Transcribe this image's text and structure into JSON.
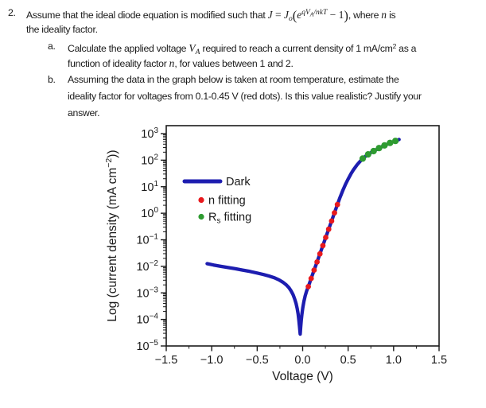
{
  "question": {
    "lines": [
      {
        "marker": "2.",
        "indent": "q",
        "segments": [
          {
            "t": "Assume that the ideal diode equation is modified such that ",
            "s": "p"
          },
          {
            "t": "J",
            "s": "i"
          },
          {
            "t": " = ",
            "s": "r"
          },
          {
            "t": "J",
            "s": "i"
          },
          {
            "t": "o",
            "s": "isub"
          },
          {
            "t": "(",
            "s": "big"
          },
          {
            "t": "e",
            "s": "i"
          },
          {
            "t": "qV",
            "s": "isup"
          },
          {
            "t": "A",
            "s": "isupsub"
          },
          {
            "t": "/nkT",
            "s": "isup"
          },
          {
            "t": " − 1",
            "s": "r"
          },
          {
            "t": ")",
            "s": "big"
          },
          {
            "t": ", where ",
            "s": "p"
          },
          {
            "t": "n",
            "s": "i"
          },
          {
            "t": " is",
            "s": "p"
          }
        ]
      },
      {
        "indent": "q",
        "segments": [
          {
            "t": "the ideality factor.",
            "s": "p"
          }
        ]
      },
      {
        "marker": "a.",
        "indent": "sub",
        "segments": [
          {
            "t": "Calculate the applied voltage ",
            "s": "p"
          },
          {
            "t": "V",
            "s": "i"
          },
          {
            "t": "A",
            "s": "isub"
          },
          {
            "t": " required to reach a current density of 1 mA/cm",
            "s": "p"
          },
          {
            "t": "2",
            "s": "sup"
          },
          {
            "t": " as a",
            "s": "p"
          }
        ]
      },
      {
        "indent": "sub",
        "segments": [
          {
            "t": "function of ideality factor ",
            "s": "p"
          },
          {
            "t": "n",
            "s": "i"
          },
          {
            "t": ", for values between 1 and 2.",
            "s": "p"
          }
        ]
      },
      {
        "marker": "b.",
        "indent": "sub",
        "segments": [
          {
            "t": "Assuming the data in the graph below is taken at room temperature, estimate the",
            "s": "p"
          }
        ]
      },
      {
        "indent": "sub",
        "segments": [
          {
            "t": "ideality factor for voltages from 0.1-0.45 V (red dots). Is this value realistic? Justify your",
            "s": "p"
          }
        ]
      },
      {
        "indent": "sub",
        "segments": [
          {
            "t": "answer.",
            "s": "p"
          }
        ]
      }
    ]
  },
  "chart_data": {
    "type": "line",
    "title": "",
    "xlabel": "Voltage (V)",
    "ylabel": "Log (current density (mA cm⁻²))",
    "ylabel_parts": {
      "pre": "Log (current density (mA cm",
      "sup": "−2",
      "post": "))"
    },
    "xlim": [
      -1.5,
      1.5
    ],
    "ylim_log": [
      -5,
      3.3
    ],
    "grid": false,
    "legend_position": "upper-left-inside",
    "x_ticks": [
      -1.5,
      -1.0,
      -0.5,
      0.0,
      0.5,
      1.0,
      1.5
    ],
    "x_tick_labels": [
      "−1.5",
      "−1.0",
      "−0.5",
      "0.0",
      "0.5",
      "1.0",
      "1.5"
    ],
    "x_minor_step": 0.25,
    "y_tick_exponents": [
      3,
      2,
      1,
      0,
      -1,
      -2,
      -3,
      -4,
      -5
    ],
    "colors": {
      "dark": "#1d1db0",
      "n_fitting": "#e8191d",
      "rs_fitting": "#2e9b30",
      "axis": "#1a1a1a"
    },
    "legend": [
      {
        "label": "Dark",
        "type": "line",
        "color_key": "dark"
      },
      {
        "label": "n fitting",
        "type": "dot",
        "color_key": "n_fitting"
      },
      {
        "label": "Rs fitting",
        "label_parts": {
          "pre": "R",
          "sub": "s",
          "post": " fitting"
        },
        "type": "dot",
        "color_key": "rs_fitting"
      }
    ],
    "series": [
      {
        "name": "Dark",
        "type": "line",
        "color_key": "dark",
        "points": [
          [
            -1.05,
            0.0126
          ],
          [
            -0.98,
            0.0112
          ],
          [
            -0.9,
            0.01
          ],
          [
            -0.82,
            0.009
          ],
          [
            -0.74,
            0.0081
          ],
          [
            -0.66,
            0.0072
          ],
          [
            -0.58,
            0.0064
          ],
          [
            -0.5,
            0.0056
          ],
          [
            -0.43,
            0.0049
          ],
          [
            -0.37,
            0.0043
          ],
          [
            -0.31,
            0.0037
          ],
          [
            -0.26,
            0.0031
          ],
          [
            -0.215,
            0.0025
          ],
          [
            -0.18,
            0.002
          ],
          [
            -0.15,
            0.00155
          ],
          [
            -0.125,
            0.00115
          ],
          [
            -0.105,
            0.00085
          ],
          [
            -0.088,
            0.0006
          ],
          [
            -0.073,
            0.0004
          ],
          [
            -0.06,
            0.00026
          ],
          [
            -0.05,
            0.00016
          ],
          [
            -0.042,
            9.5e-05
          ],
          [
            -0.035,
            5.5e-05
          ],
          [
            -0.03,
            3.5e-05
          ],
          [
            -0.027,
            2.8e-05
          ],
          [
            -0.022,
            5e-05
          ],
          [
            -0.016,
            9e-05
          ],
          [
            -0.008,
            0.00016
          ],
          [
            0.002,
            0.00028
          ],
          [
            0.014,
            0.00048
          ],
          [
            0.028,
            0.00078
          ],
          [
            0.044,
            0.00118
          ],
          [
            0.062,
            0.00172
          ],
          [
            0.094,
            0.0035
          ],
          [
            0.126,
            0.0072
          ],
          [
            0.158,
            0.0146
          ],
          [
            0.19,
            0.0296
          ],
          [
            0.222,
            0.0603
          ],
          [
            0.254,
            0.123
          ],
          [
            0.286,
            0.25
          ],
          [
            0.318,
            0.51
          ],
          [
            0.35,
            1.04
          ],
          [
            0.382,
            2.12
          ],
          [
            0.41,
            3.9
          ],
          [
            0.44,
            7.0
          ],
          [
            0.47,
            12.0
          ],
          [
            0.5,
            19.5
          ],
          [
            0.53,
            30.0
          ],
          [
            0.56,
            44.0
          ],
          [
            0.6,
            68.0
          ],
          [
            0.64,
            97.0
          ],
          [
            0.68,
            130.0
          ],
          [
            0.72,
            165.0
          ],
          [
            0.77,
            210.0
          ],
          [
            0.82,
            260.0
          ],
          [
            0.87,
            320.0
          ],
          [
            0.92,
            385.0
          ],
          [
            0.97,
            455.0
          ],
          [
            1.02,
            530.0
          ],
          [
            1.06,
            600.0
          ]
        ]
      },
      {
        "name": "n fitting",
        "type": "scatter",
        "color_key": "n_fitting",
        "dot_radius": 3.4,
        "points": [
          [
            0.062,
            0.00172
          ],
          [
            0.094,
            0.0035
          ],
          [
            0.126,
            0.0072
          ],
          [
            0.158,
            0.0146
          ],
          [
            0.19,
            0.0296
          ],
          [
            0.222,
            0.0603
          ],
          [
            0.254,
            0.123
          ],
          [
            0.286,
            0.25
          ],
          [
            0.318,
            0.51
          ],
          [
            0.35,
            1.04
          ],
          [
            0.382,
            2.12
          ]
        ]
      },
      {
        "name": "Rs fitting",
        "type": "scatter",
        "color_key": "rs_fitting",
        "dot_radius": 4.1,
        "points": [
          [
            0.66,
            115
          ],
          [
            0.72,
            165
          ],
          [
            0.78,
            220
          ],
          [
            0.84,
            285
          ],
          [
            0.9,
            360
          ],
          [
            0.96,
            445
          ],
          [
            1.02,
            530
          ]
        ]
      }
    ]
  }
}
